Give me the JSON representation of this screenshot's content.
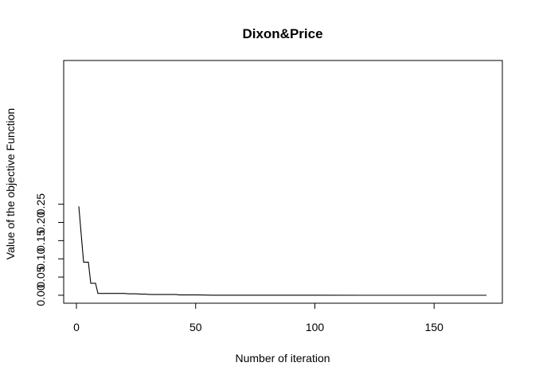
{
  "chart_data": {
    "type": "line",
    "title": "Dixon&Price",
    "xlabel": "Number of iteration",
    "ylabel": "Value of the objective Function",
    "xlim": [
      1,
      172
    ],
    "ylim": [
      0,
      0.25
    ],
    "xticks": [
      0,
      50,
      100,
      150
    ],
    "yticks": [
      0.0,
      0.05,
      0.1,
      0.15,
      0.2,
      0.25
    ],
    "xtick_labels": [
      "0",
      "50",
      "100",
      "150"
    ],
    "ytick_labels": [
      "0.00",
      "0.05",
      "0.10",
      "0.15",
      "0.20",
      "0.25"
    ],
    "grid": false,
    "series": [
      {
        "color": "#000000",
        "x": [
          1,
          3,
          4,
          5,
          6,
          7,
          8,
          9,
          10,
          15,
          20,
          22,
          24,
          25,
          27,
          28,
          29,
          30,
          31,
          32,
          35,
          40,
          42,
          43,
          45,
          50,
          55,
          57,
          60,
          80,
          100,
          120,
          140,
          160,
          172
        ],
        "y": [
          0.244,
          0.091,
          0.091,
          0.091,
          0.033,
          0.033,
          0.033,
          0.005,
          0.005,
          0.005,
          0.005,
          0.004,
          0.004,
          0.004,
          0.003,
          0.003,
          0.003,
          0.0025,
          0.0025,
          0.002,
          0.002,
          0.002,
          0.002,
          0.0008,
          0.0008,
          0.0008,
          0.0005,
          0.0003,
          0.0003,
          0.0002,
          0.0002,
          0.0001,
          0.0001,
          0.0001,
          0.0001
        ]
      }
    ]
  }
}
